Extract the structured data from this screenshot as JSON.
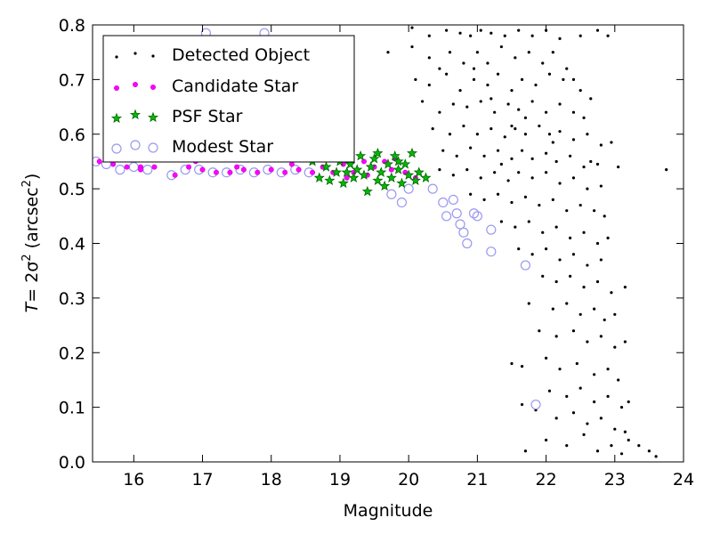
{
  "chart_data": {
    "type": "scatter",
    "xlabel": "Magnitude",
    "ylabel_main": "T",
    "ylabel_eq": "= 2σ",
    "ylabel_sup": "2",
    "ylabel_unit": "(arcsec",
    "ylabel_unit_sup": "2",
    "ylabel_close": ")",
    "xlim": [
      15.4,
      24
    ],
    "ylim": [
      0.0,
      0.8
    ],
    "xticks": [
      "16",
      "17",
      "18",
      "19",
      "20",
      "21",
      "22",
      "23",
      "24"
    ],
    "yticks": [
      "0.0",
      "0.1",
      "0.2",
      "0.3",
      "0.4",
      "0.5",
      "0.6",
      "0.7",
      "0.8"
    ],
    "legend_position": "top-left",
    "colors": {
      "detected": "#000000",
      "candidate": "#ff00ff",
      "psf_fill": "#00bb00",
      "psf_edge": "#006600",
      "modest": "#9999ee"
    },
    "series": [
      {
        "name": "Detected Object",
        "marker": "dot",
        "points": [
          [
            20.05,
            0.795
          ],
          [
            20.3,
            0.78
          ],
          [
            20.55,
            0.79
          ],
          [
            20.75,
            0.785
          ],
          [
            20.9,
            0.78
          ],
          [
            21.05,
            0.79
          ],
          [
            21.2,
            0.785
          ],
          [
            21.4,
            0.78
          ],
          [
            21.6,
            0.79
          ],
          [
            21.8,
            0.78
          ],
          [
            22.0,
            0.79
          ],
          [
            22.2,
            0.775
          ],
          [
            22.5,
            0.78
          ],
          [
            22.75,
            0.79
          ],
          [
            22.9,
            0.78
          ],
          [
            19.7,
            0.75
          ],
          [
            20.05,
            0.76
          ],
          [
            20.3,
            0.74
          ],
          [
            20.45,
            0.72
          ],
          [
            20.6,
            0.75
          ],
          [
            20.8,
            0.73
          ],
          [
            21.0,
            0.75
          ],
          [
            21.15,
            0.73
          ],
          [
            21.35,
            0.76
          ],
          [
            21.55,
            0.74
          ],
          [
            21.75,
            0.75
          ],
          [
            21.95,
            0.73
          ],
          [
            22.1,
            0.75
          ],
          [
            22.3,
            0.72
          ],
          [
            20.1,
            0.7
          ],
          [
            20.3,
            0.69
          ],
          [
            20.55,
            0.71
          ],
          [
            20.75,
            0.68
          ],
          [
            20.95,
            0.7
          ],
          [
            21.15,
            0.69
          ],
          [
            21.3,
            0.71
          ],
          [
            21.5,
            0.68
          ],
          [
            21.65,
            0.7
          ],
          [
            21.85,
            0.69
          ],
          [
            22.05,
            0.71
          ],
          [
            22.25,
            0.7
          ],
          [
            22.5,
            0.68
          ],
          [
            22.65,
            0.665
          ],
          [
            20.2,
            0.66
          ],
          [
            20.45,
            0.64
          ],
          [
            20.65,
            0.655
          ],
          [
            20.85,
            0.65
          ],
          [
            21.05,
            0.66
          ],
          [
            21.25,
            0.64
          ],
          [
            21.45,
            0.655
          ],
          [
            21.6,
            0.645
          ],
          [
            21.8,
            0.66
          ],
          [
            22.0,
            0.64
          ],
          [
            22.2,
            0.655
          ],
          [
            22.4,
            0.64
          ],
          [
            22.55,
            0.63
          ],
          [
            20.35,
            0.61
          ],
          [
            20.6,
            0.6
          ],
          [
            20.8,
            0.615
          ],
          [
            21.0,
            0.6
          ],
          [
            21.2,
            0.61
          ],
          [
            21.4,
            0.595
          ],
          [
            21.55,
            0.61
          ],
          [
            21.7,
            0.6
          ],
          [
            21.9,
            0.615
          ],
          [
            22.05,
            0.6
          ],
          [
            22.2,
            0.605
          ],
          [
            22.4,
            0.59
          ],
          [
            22.6,
            0.6
          ],
          [
            22.8,
            0.58
          ],
          [
            22.95,
            0.585
          ],
          [
            20.5,
            0.57
          ],
          [
            20.7,
            0.56
          ],
          [
            20.9,
            0.575
          ],
          [
            21.1,
            0.56
          ],
          [
            21.3,
            0.57
          ],
          [
            21.5,
            0.555
          ],
          [
            21.65,
            0.57
          ],
          [
            21.8,
            0.555
          ],
          [
            22.0,
            0.565
          ],
          [
            22.15,
            0.55
          ],
          [
            22.35,
            0.56
          ],
          [
            22.55,
            0.54
          ],
          [
            22.75,
            0.545
          ],
          [
            23.05,
            0.54
          ],
          [
            20.45,
            0.535
          ],
          [
            20.65,
            0.525
          ],
          [
            20.85,
            0.535
          ],
          [
            21.05,
            0.52
          ],
          [
            21.25,
            0.53
          ],
          [
            21.45,
            0.515
          ],
          [
            21.6,
            0.53
          ],
          [
            21.8,
            0.52
          ],
          [
            22.0,
            0.53
          ],
          [
            22.2,
            0.51
          ],
          [
            22.4,
            0.52
          ],
          [
            22.6,
            0.5
          ],
          [
            22.8,
            0.505
          ],
          [
            23.75,
            0.535
          ],
          [
            20.9,
            0.49
          ],
          [
            21.1,
            0.48
          ],
          [
            21.3,
            0.49
          ],
          [
            21.5,
            0.475
          ],
          [
            21.7,
            0.485
          ],
          [
            21.9,
            0.47
          ],
          [
            22.1,
            0.48
          ],
          [
            22.3,
            0.46
          ],
          [
            22.5,
            0.47
          ],
          [
            22.7,
            0.46
          ],
          [
            22.85,
            0.45
          ],
          [
            21.35,
            0.44
          ],
          [
            21.55,
            0.43
          ],
          [
            21.75,
            0.44
          ],
          [
            21.95,
            0.42
          ],
          [
            22.15,
            0.43
          ],
          [
            22.35,
            0.41
          ],
          [
            22.55,
            0.42
          ],
          [
            22.75,
            0.4
          ],
          [
            22.9,
            0.41
          ],
          [
            21.6,
            0.39
          ],
          [
            21.8,
            0.38
          ],
          [
            22.0,
            0.39
          ],
          [
            22.2,
            0.37
          ],
          [
            22.4,
            0.38
          ],
          [
            22.6,
            0.36
          ],
          [
            22.8,
            0.37
          ],
          [
            21.95,
            0.34
          ],
          [
            22.15,
            0.33
          ],
          [
            22.35,
            0.34
          ],
          [
            22.55,
            0.32
          ],
          [
            22.75,
            0.33
          ],
          [
            22.95,
            0.31
          ],
          [
            23.15,
            0.32
          ],
          [
            21.75,
            0.29
          ],
          [
            22.1,
            0.28
          ],
          [
            22.3,
            0.29
          ],
          [
            22.5,
            0.27
          ],
          [
            22.7,
            0.28
          ],
          [
            22.85,
            0.26
          ],
          [
            23.0,
            0.27
          ],
          [
            21.9,
            0.24
          ],
          [
            22.15,
            0.23
          ],
          [
            22.4,
            0.24
          ],
          [
            22.6,
            0.22
          ],
          [
            22.8,
            0.23
          ],
          [
            23.0,
            0.21
          ],
          [
            23.15,
            0.22
          ],
          [
            21.5,
            0.18
          ],
          [
            21.65,
            0.175
          ],
          [
            22.0,
            0.19
          ],
          [
            22.2,
            0.17
          ],
          [
            22.45,
            0.18
          ],
          [
            22.7,
            0.16
          ],
          [
            22.9,
            0.17
          ],
          [
            23.05,
            0.15
          ],
          [
            22.05,
            0.13
          ],
          [
            22.3,
            0.12
          ],
          [
            22.5,
            0.135
          ],
          [
            22.7,
            0.11
          ],
          [
            22.9,
            0.12
          ],
          [
            23.1,
            0.1
          ],
          [
            23.2,
            0.11
          ],
          [
            21.65,
            0.105
          ],
          [
            21.85,
            0.095
          ],
          [
            22.15,
            0.08
          ],
          [
            22.4,
            0.09
          ],
          [
            22.6,
            0.07
          ],
          [
            22.8,
            0.08
          ],
          [
            23.0,
            0.06
          ],
          [
            23.15,
            0.055
          ],
          [
            21.7,
            0.02
          ],
          [
            22.0,
            0.04
          ],
          [
            22.3,
            0.03
          ],
          [
            22.55,
            0.05
          ],
          [
            22.75,
            0.02
          ],
          [
            22.95,
            0.03
          ],
          [
            23.2,
            0.04
          ],
          [
            23.35,
            0.03
          ],
          [
            23.5,
            0.02
          ],
          [
            23.6,
            0.01
          ],
          [
            23.1,
            0.015
          ],
          [
            21.5,
            0.615
          ],
          [
            21.2,
            0.665
          ],
          [
            20.95,
            0.72
          ],
          [
            22.4,
            0.7
          ],
          [
            22.1,
            0.585
          ],
          [
            21.7,
            0.63
          ],
          [
            21.35,
            0.545
          ],
          [
            22.65,
            0.55
          ]
        ]
      },
      {
        "name": "Candidate Star",
        "marker": "small-circle",
        "points": [
          [
            15.5,
            0.55
          ],
          [
            15.7,
            0.545
          ],
          [
            15.9,
            0.54
          ],
          [
            16.1,
            0.54
          ],
          [
            16.3,
            0.54
          ],
          [
            16.6,
            0.525
          ],
          [
            16.8,
            0.54
          ],
          [
            17.0,
            0.535
          ],
          [
            17.2,
            0.53
          ],
          [
            17.4,
            0.53
          ],
          [
            17.6,
            0.535
          ],
          [
            17.8,
            0.53
          ],
          [
            18.0,
            0.535
          ],
          [
            18.2,
            0.53
          ],
          [
            18.4,
            0.535
          ],
          [
            18.6,
            0.53
          ],
          [
            18.75,
            0.54
          ],
          [
            18.9,
            0.53
          ],
          [
            19.05,
            0.545
          ],
          [
            19.2,
            0.53
          ],
          [
            19.35,
            0.55
          ],
          [
            19.5,
            0.54
          ],
          [
            19.65,
            0.55
          ],
          [
            19.8,
            0.555
          ],
          [
            19.95,
            0.53
          ],
          [
            20.1,
            0.52
          ],
          [
            16.1,
            0.535
          ],
          [
            16.9,
            0.55
          ],
          [
            17.5,
            0.54
          ],
          [
            18.3,
            0.545
          ],
          [
            19.1,
            0.52
          ],
          [
            19.4,
            0.525
          ],
          [
            19.75,
            0.535
          ]
        ]
      },
      {
        "name": "PSF Star",
        "marker": "star",
        "points": [
          [
            18.6,
            0.55
          ],
          [
            18.7,
            0.52
          ],
          [
            18.8,
            0.54
          ],
          [
            18.85,
            0.515
          ],
          [
            18.95,
            0.53
          ],
          [
            19.0,
            0.55
          ],
          [
            19.05,
            0.51
          ],
          [
            19.1,
            0.53
          ],
          [
            19.15,
            0.545
          ],
          [
            19.2,
            0.52
          ],
          [
            19.25,
            0.535
          ],
          [
            19.3,
            0.56
          ],
          [
            19.35,
            0.525
          ],
          [
            19.4,
            0.495
          ],
          [
            19.45,
            0.54
          ],
          [
            19.5,
            0.555
          ],
          [
            19.55,
            0.515
          ],
          [
            19.6,
            0.53
          ],
          [
            19.65,
            0.505
          ],
          [
            19.7,
            0.545
          ],
          [
            19.75,
            0.52
          ],
          [
            19.8,
            0.56
          ],
          [
            19.85,
            0.535
          ],
          [
            19.9,
            0.51
          ],
          [
            19.95,
            0.545
          ],
          [
            20.0,
            0.525
          ],
          [
            20.05,
            0.565
          ],
          [
            20.1,
            0.515
          ],
          [
            20.15,
            0.53
          ],
          [
            20.25,
            0.52
          ],
          [
            19.55,
            0.565
          ],
          [
            19.85,
            0.55
          ]
        ]
      },
      {
        "name": "Modest Star",
        "marker": "open-circle",
        "points": [
          [
            15.45,
            0.55
          ],
          [
            15.6,
            0.545
          ],
          [
            15.8,
            0.535
          ],
          [
            16.0,
            0.54
          ],
          [
            16.2,
            0.535
          ],
          [
            16.55,
            0.525
          ],
          [
            16.75,
            0.535
          ],
          [
            16.95,
            0.535
          ],
          [
            17.15,
            0.53
          ],
          [
            17.35,
            0.53
          ],
          [
            17.55,
            0.535
          ],
          [
            17.75,
            0.53
          ],
          [
            17.95,
            0.535
          ],
          [
            18.15,
            0.53
          ],
          [
            18.35,
            0.535
          ],
          [
            18.55,
            0.53
          ],
          [
            17.05,
            0.785
          ],
          [
            17.9,
            0.785
          ],
          [
            19.9,
            0.475
          ],
          [
            20.0,
            0.5
          ],
          [
            20.35,
            0.5
          ],
          [
            20.5,
            0.475
          ],
          [
            20.55,
            0.45
          ],
          [
            20.65,
            0.48
          ],
          [
            20.7,
            0.455
          ],
          [
            20.75,
            0.435
          ],
          [
            20.8,
            0.42
          ],
          [
            20.85,
            0.4
          ],
          [
            20.95,
            0.455
          ],
          [
            21.0,
            0.45
          ],
          [
            21.2,
            0.425
          ],
          [
            21.2,
            0.385
          ],
          [
            21.7,
            0.36
          ],
          [
            21.85,
            0.105
          ],
          [
            19.75,
            0.49
          ]
        ]
      }
    ]
  }
}
